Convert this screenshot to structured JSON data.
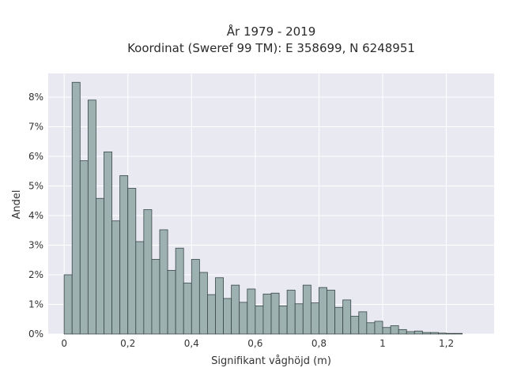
{
  "chart_data": {
    "type": "bar",
    "title_line1": "År 1979 - 2019",
    "title_line2": "Koordinat (Sweref 99 TM): E 358699, N 6248951",
    "xlabel": "Signifikant våghöjd (m)",
    "ylabel": "Andel",
    "xlim": [
      -0.05,
      1.35
    ],
    "ylim": [
      0,
      8.8
    ],
    "bin_width": 0.025,
    "bin_start": 0.0,
    "x_ticks": [
      {
        "value": 0,
        "label": "0"
      },
      {
        "value": 0.2,
        "label": "0,2"
      },
      {
        "value": 0.4,
        "label": "0,4"
      },
      {
        "value": 0.6,
        "label": "0,6"
      },
      {
        "value": 0.8,
        "label": "0,8"
      },
      {
        "value": 1.0,
        "label": "1"
      },
      {
        "value": 1.2,
        "label": "1,2"
      }
    ],
    "y_ticks": [
      {
        "value": 0,
        "label": "0%"
      },
      {
        "value": 1,
        "label": "1%"
      },
      {
        "value": 2,
        "label": "2%"
      },
      {
        "value": 3,
        "label": "3%"
      },
      {
        "value": 4,
        "label": "4%"
      },
      {
        "value": 5,
        "label": "5%"
      },
      {
        "value": 6,
        "label": "6%"
      },
      {
        "value": 7,
        "label": "7%"
      },
      {
        "value": 8,
        "label": "8%"
      }
    ],
    "values": [
      2.0,
      8.5,
      5.85,
      7.9,
      4.58,
      6.15,
      3.82,
      5.35,
      4.92,
      3.12,
      4.2,
      2.52,
      3.52,
      2.15,
      2.9,
      1.72,
      2.52,
      2.08,
      1.33,
      1.9,
      1.2,
      1.65,
      1.07,
      1.52,
      0.95,
      1.35,
      1.38,
      0.95,
      1.48,
      1.02,
      1.65,
      1.05,
      1.57,
      1.48,
      0.9,
      1.15,
      0.6,
      0.75,
      0.38,
      0.43,
      0.22,
      0.28,
      0.15,
      0.08,
      0.1,
      0.05,
      0.05,
      0.03,
      0.02,
      0.02
    ],
    "colors": {
      "plot_background": "#e9e9f1",
      "bar_fill": "#9db1b1",
      "bar_edge": "#3a4747",
      "grid": "#ffffff"
    },
    "grid": true
  }
}
